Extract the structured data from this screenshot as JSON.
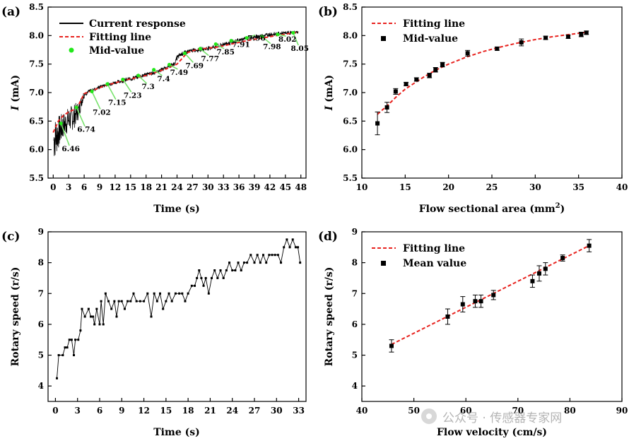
{
  "watermark": {
    "text": "公众号 · 传感器专家网",
    "icon": "wechat-logo"
  },
  "colors": {
    "raw": "#000000",
    "fit": "#e8231f",
    "mid": "#22e81a",
    "leader": "#77e26c",
    "marker": "#000000"
  },
  "chart_data": [
    {
      "panel": "(a)",
      "type": "line",
      "xlabel": "Time (s)",
      "ylabel_italic": "I",
      "ylabel_rest": " (mA)",
      "xlim": [
        -1,
        49
      ],
      "ylim": [
        5.5,
        8.5
      ],
      "xticks": [
        0,
        3,
        6,
        9,
        12,
        15,
        18,
        21,
        24,
        27,
        30,
        33,
        36,
        39,
        42,
        45,
        48
      ],
      "yticks": [
        5.5,
        6.0,
        6.5,
        7.0,
        7.5,
        8.0,
        8.5
      ],
      "legend": [
        "Current response",
        "Fitting line",
        "Mid-value"
      ],
      "legend_position": "top-left",
      "current_response_envelope": {
        "x": [
          0.1,
          1,
          2,
          3,
          4,
          5,
          5.5,
          6,
          8,
          10,
          12,
          14,
          16,
          18,
          20,
          22,
          23.5,
          24,
          25,
          27,
          29,
          30,
          32,
          33,
          35,
          36,
          38,
          40,
          42,
          44,
          46,
          47.5
        ],
        "low": [
          5.78,
          6.0,
          6.2,
          6.3,
          6.35,
          6.55,
          6.75,
          6.9,
          7.0,
          7.08,
          7.12,
          7.16,
          7.2,
          7.25,
          7.3,
          7.38,
          7.45,
          7.52,
          7.62,
          7.68,
          7.7,
          7.72,
          7.75,
          7.78,
          7.82,
          7.86,
          7.9,
          7.93,
          7.96,
          7.98,
          8.0,
          8.02
        ],
        "high": [
          6.55,
          6.6,
          6.65,
          6.75,
          6.8,
          6.85,
          6.95,
          7.05,
          7.12,
          7.18,
          7.23,
          7.28,
          7.33,
          7.38,
          7.42,
          7.5,
          7.56,
          7.7,
          7.76,
          7.8,
          7.82,
          7.84,
          7.88,
          7.92,
          7.96,
          7.98,
          8.02,
          8.05,
          8.08,
          8.09,
          8.1,
          8.1
        ]
      },
      "fitting_line": {
        "x": [
          0,
          1,
          2,
          3,
          4,
          5,
          6,
          8,
          10,
          12,
          14,
          16,
          18,
          20,
          22,
          24,
          26,
          28,
          30,
          32,
          34,
          36,
          38,
          40,
          42,
          44,
          46,
          47.5
        ],
        "y": [
          6.3,
          6.5,
          6.6,
          6.66,
          6.7,
          6.8,
          6.98,
          7.05,
          7.12,
          7.17,
          7.22,
          7.26,
          7.3,
          7.36,
          7.42,
          7.5,
          7.7,
          7.76,
          7.78,
          7.8,
          7.84,
          7.88,
          7.92,
          7.95,
          7.98,
          8.01,
          8.04,
          8.06
        ]
      },
      "mid_values": {
        "x": [
          1.5,
          4.5,
          7.5,
          10.5,
          13.5,
          16.5,
          19.5,
          22.5,
          25.5,
          28.5,
          31.5,
          34.5,
          37.5,
          40.5,
          43.5,
          46.5
        ],
        "y": [
          6.46,
          6.74,
          7.02,
          7.15,
          7.23,
          7.3,
          7.4,
          7.49,
          7.69,
          7.77,
          7.85,
          7.91,
          7.96,
          7.98,
          8.02,
          8.05
        ]
      },
      "annotations": [
        {
          "text": "6.46",
          "x": 3.4,
          "y": 5.97
        },
        {
          "text": "6.74",
          "x": 6.4,
          "y": 6.31
        },
        {
          "text": "7.02",
          "x": 9.4,
          "y": 6.61
        },
        {
          "text": "7.15",
          "x": 12.4,
          "y": 6.78
        },
        {
          "text": "7.23",
          "x": 15.4,
          "y": 6.91
        },
        {
          "text": "7.3",
          "x": 18.4,
          "y": 7.06
        },
        {
          "text": "7.4",
          "x": 21.4,
          "y": 7.2
        },
        {
          "text": "7.49",
          "x": 24.4,
          "y": 7.31
        },
        {
          "text": "7.69",
          "x": 27.4,
          "y": 7.43
        },
        {
          "text": "7.77",
          "x": 30.4,
          "y": 7.55
        },
        {
          "text": "7.85",
          "x": 33.4,
          "y": 7.67
        },
        {
          "text": "7.91",
          "x": 36.4,
          "y": 7.8
        },
        {
          "text": "7.96",
          "x": 39.4,
          "y": 7.91
        },
        {
          "text": "7.98",
          "x": 42.4,
          "y": 7.76
        },
        {
          "text": "8.02",
          "x": 45.4,
          "y": 7.89
        },
        {
          "text": "8.05",
          "x": 47.8,
          "y": 7.73
        }
      ]
    },
    {
      "panel": "(b)",
      "type": "scatter",
      "xlabel": "Flow sectional area (mm",
      "xlabel_sup": "2",
      "xlabel_end": ")",
      "ylabel_italic": "I",
      "ylabel_rest": " (mA)",
      "xlim": [
        10,
        40
      ],
      "ylim": [
        5.5,
        8.5
      ],
      "xticks": [
        10,
        15,
        20,
        25,
        30,
        35,
        40
      ],
      "yticks": [
        5.5,
        6.0,
        6.5,
        7.0,
        7.5,
        8.0,
        8.5
      ],
      "legend": [
        "Fitting line",
        "Mid-value"
      ],
      "legend_position": "top-left",
      "points": {
        "x": [
          11.8,
          12.9,
          13.9,
          15.1,
          16.3,
          17.8,
          18.5,
          19.3,
          22.2,
          25.6,
          28.4,
          31.2,
          33.8,
          35.3,
          35.9
        ],
        "y": [
          6.46,
          6.74,
          7.02,
          7.15,
          7.23,
          7.3,
          7.4,
          7.49,
          7.69,
          7.77,
          7.88,
          7.96,
          7.98,
          8.02,
          8.05
        ],
        "err": [
          0.2,
          0.09,
          0.05,
          0.03,
          0.03,
          0.04,
          0.04,
          0.04,
          0.05,
          0.03,
          0.06,
          0.03,
          0.03,
          0.04,
          0.03
        ]
      },
      "fitting_line": {
        "x": [
          11.8,
          13,
          14,
          15,
          16,
          17,
          18,
          19,
          20,
          22,
          24,
          26,
          28,
          30,
          32,
          34,
          36
        ],
        "y": [
          6.62,
          6.78,
          6.93,
          7.06,
          7.16,
          7.26,
          7.35,
          7.43,
          7.5,
          7.62,
          7.72,
          7.8,
          7.87,
          7.93,
          7.98,
          8.02,
          8.06
        ]
      }
    },
    {
      "panel": "(c)",
      "type": "line",
      "xlabel": "Time (s)",
      "ylabel": "Rotary speed (r/s)",
      "xlim": [
        -1,
        34
      ],
      "ylim": [
        3.5,
        9
      ],
      "xticks": [
        0,
        3,
        6,
        9,
        12,
        15,
        18,
        21,
        24,
        27,
        30,
        33
      ],
      "yticks": [
        4,
        5,
        6,
        7,
        8,
        9
      ],
      "series": {
        "x": [
          0.2,
          0.45,
          1.0,
          1.3,
          1.6,
          1.9,
          2.2,
          2.5,
          2.7,
          3.1,
          3.4,
          3.6,
          4.0,
          4.5,
          4.8,
          5.1,
          5.3,
          5.6,
          6.0,
          6.2,
          6.5,
          6.8,
          7.2,
          7.6,
          8.0,
          8.3,
          8.6,
          9.0,
          9.4,
          9.8,
          10.2,
          10.6,
          11.0,
          11.5,
          12.0,
          12.5,
          13.0,
          13.4,
          13.8,
          14.2,
          14.6,
          15.0,
          15.4,
          15.8,
          16.3,
          16.8,
          17.2,
          17.6,
          18.0,
          18.5,
          18.9,
          19.2,
          19.5,
          19.8,
          20.1,
          20.4,
          20.8,
          21.2,
          21.6,
          22.0,
          22.4,
          22.8,
          23.2,
          23.6,
          24.0,
          24.4,
          24.8,
          25.2,
          25.6,
          26.0,
          26.5,
          27.0,
          27.4,
          27.8,
          28.2,
          28.6,
          29.0,
          29.4,
          29.8,
          30.2,
          30.6,
          31.0,
          31.4,
          31.8,
          32.2,
          32.6,
          32.9,
          33.2
        ],
        "y": [
          4.25,
          5.0,
          5.0,
          5.25,
          5.25,
          5.5,
          5.5,
          5.0,
          5.5,
          5.5,
          5.8,
          6.5,
          6.25,
          6.5,
          6.25,
          6.25,
          6.0,
          6.5,
          6.0,
          6.75,
          6.0,
          7.0,
          6.75,
          6.5,
          6.75,
          6.25,
          6.75,
          6.75,
          6.5,
          6.75,
          6.75,
          7.0,
          6.75,
          6.75,
          6.75,
          7.0,
          6.25,
          7.0,
          6.75,
          7.0,
          6.5,
          6.75,
          7.0,
          6.75,
          7.0,
          7.0,
          7.0,
          6.75,
          7.0,
          7.25,
          7.25,
          7.5,
          7.75,
          7.5,
          7.25,
          7.5,
          7.0,
          7.5,
          7.75,
          7.5,
          7.75,
          7.5,
          7.75,
          8.0,
          7.75,
          7.75,
          8.0,
          7.75,
          8.0,
          8.0,
          8.25,
          8.0,
          8.25,
          8.0,
          8.25,
          8.0,
          8.25,
          8.25,
          8.25,
          8.25,
          8.0,
          8.5,
          8.75,
          8.5,
          8.75,
          8.5,
          8.5,
          8.0
        ]
      }
    },
    {
      "panel": "(d)",
      "type": "scatter",
      "xlabel": "Flow velocity (cm/s)",
      "ylabel": "Rotary speed (r/s)",
      "xlim": [
        40,
        90
      ],
      "ylim": [
        3.5,
        9
      ],
      "xticks": [
        40,
        50,
        60,
        70,
        80,
        90
      ],
      "yticks": [
        4,
        5,
        6,
        7,
        8,
        9
      ],
      "legend": [
        "Fitting line",
        "Mean value"
      ],
      "legend_position": "top-left",
      "points": {
        "x": [
          45.7,
          56.5,
          59.4,
          61.8,
          62.9,
          65.3,
          72.8,
          74.1,
          75.3,
          78.6,
          83.7
        ],
        "y": [
          5.3,
          6.25,
          6.65,
          6.75,
          6.75,
          6.95,
          7.4,
          7.65,
          7.8,
          8.15,
          8.55
        ],
        "err": [
          0.2,
          0.25,
          0.25,
          0.2,
          0.2,
          0.15,
          0.2,
          0.25,
          0.2,
          0.1,
          0.2
        ]
      },
      "fitting_line": {
        "x": [
          45.7,
          83.7
        ],
        "y": [
          5.35,
          8.55
        ]
      }
    }
  ]
}
